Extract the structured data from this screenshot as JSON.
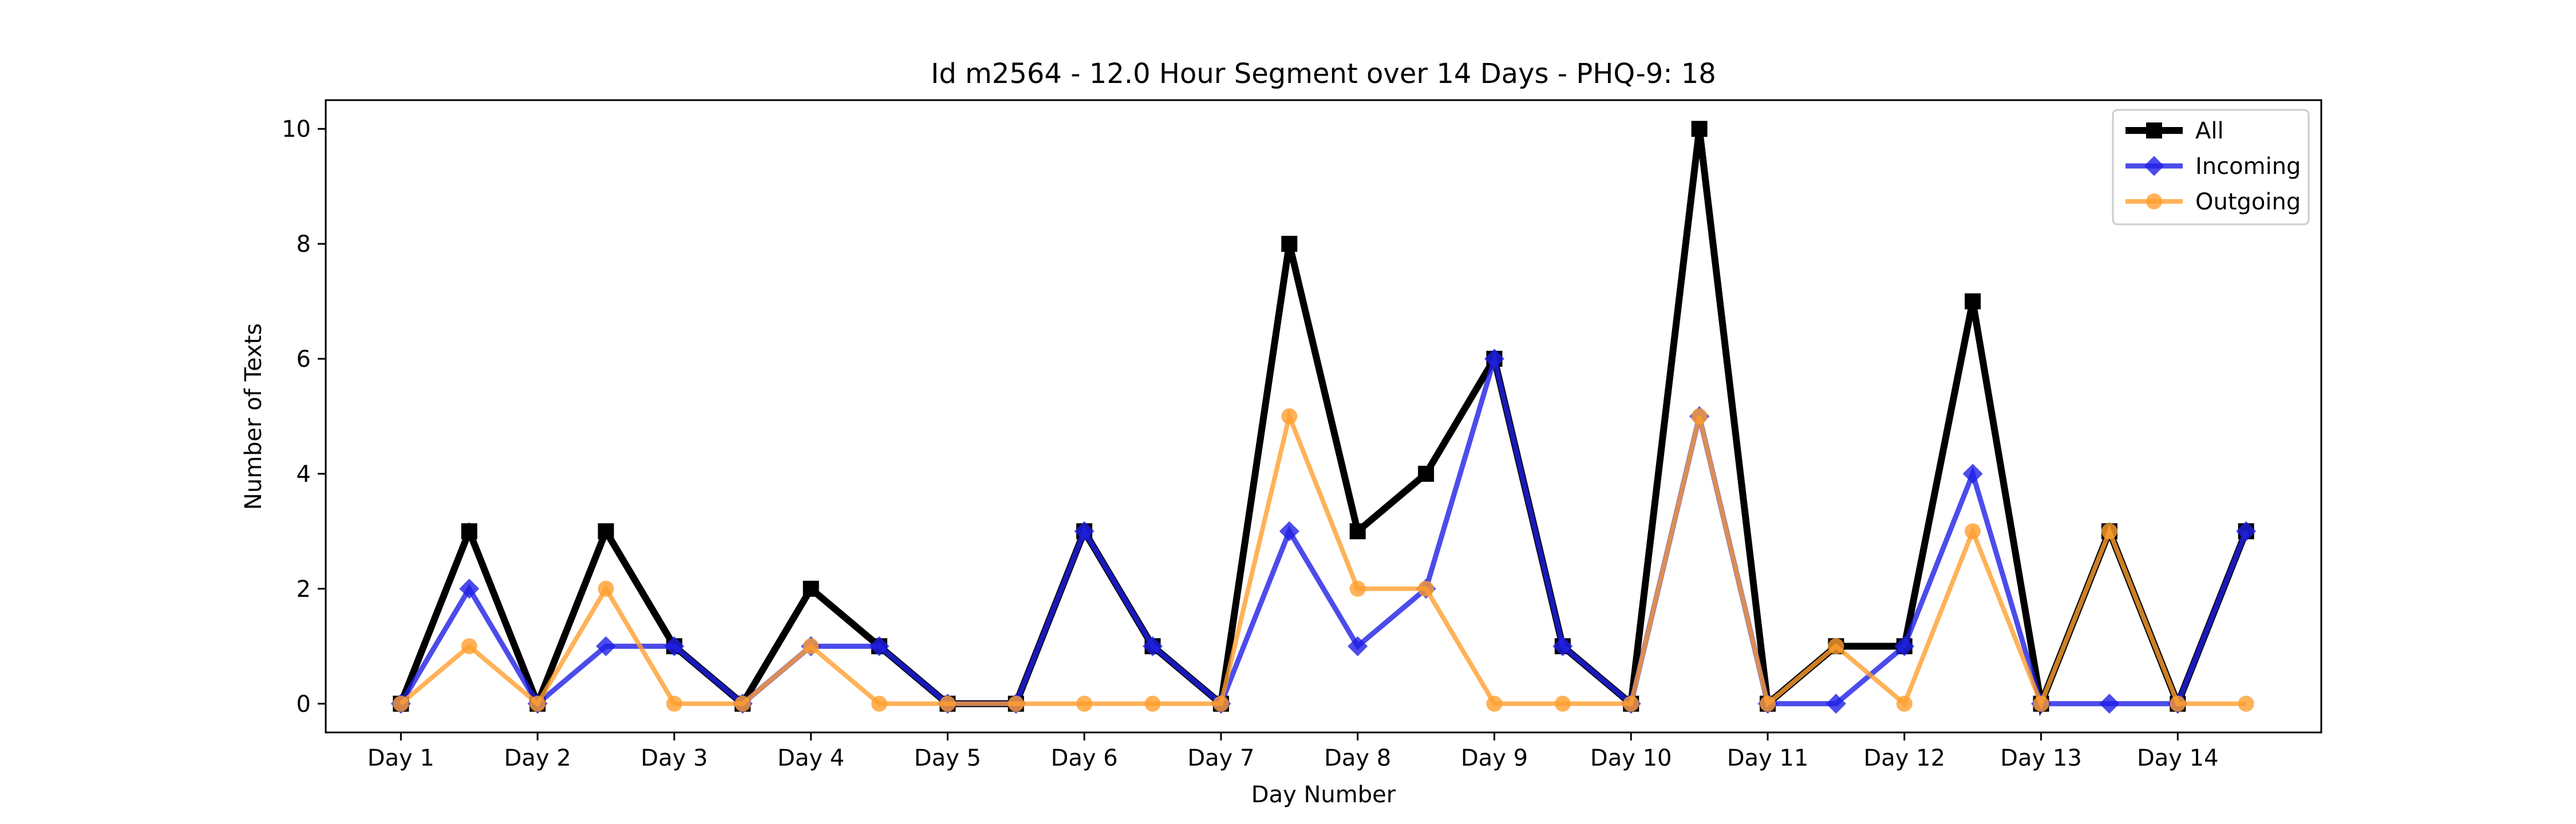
{
  "chart_data": {
    "type": "line",
    "title": "Id m2564 - 12.0 Hour Segment over 14 Days - PHQ-9: 18",
    "xlabel": "Day Number",
    "ylabel": "Number of Texts",
    "categories": [
      "Day 1",
      "Day 2",
      "Day 3",
      "Day 4",
      "Day 5",
      "Day 6",
      "Day 7",
      "Day 8",
      "Day 9",
      "Day 10",
      "Day 11",
      "Day 12",
      "Day 13",
      "Day 14"
    ],
    "x": [
      1,
      1.5,
      2,
      2.5,
      3,
      3.5,
      4,
      4.5,
      5,
      5.5,
      6,
      6.5,
      7,
      7.5,
      8,
      8.5,
      9,
      9.5,
      10,
      10.5,
      11,
      11.5,
      12,
      12.5,
      13,
      13.5,
      14,
      14.5
    ],
    "ylim": [
      -0.5,
      10.5
    ],
    "yticks": [
      0,
      2,
      4,
      6,
      8,
      10
    ],
    "xlim": [
      0.45,
      15.05
    ],
    "grid": false,
    "legend_position": "top-right",
    "series": [
      {
        "name": "All",
        "color": "#000000",
        "marker": "square",
        "values": [
          0,
          3,
          0,
          3,
          1,
          0,
          2,
          1,
          0,
          0,
          3,
          1,
          0,
          8,
          3,
          4,
          6,
          1,
          0,
          10,
          0,
          1,
          1,
          7,
          0,
          3,
          0,
          3
        ]
      },
      {
        "name": "Incoming",
        "color": "#1f1fe6",
        "marker": "diamond",
        "values": [
          0,
          2,
          0,
          1,
          1,
          0,
          1,
          1,
          0,
          0,
          3,
          1,
          0,
          3,
          1,
          2,
          6,
          1,
          0,
          5,
          0,
          0,
          1,
          4,
          0,
          0,
          0,
          3
        ]
      },
      {
        "name": "Outgoing",
        "color": "#ff9f2e",
        "marker": "circle",
        "values": [
          0,
          1,
          0,
          2,
          0,
          0,
          1,
          0,
          0,
          0,
          0,
          0,
          0,
          5,
          2,
          2,
          0,
          0,
          0,
          5,
          0,
          1,
          0,
          3,
          0,
          3,
          0,
          0
        ]
      }
    ]
  }
}
